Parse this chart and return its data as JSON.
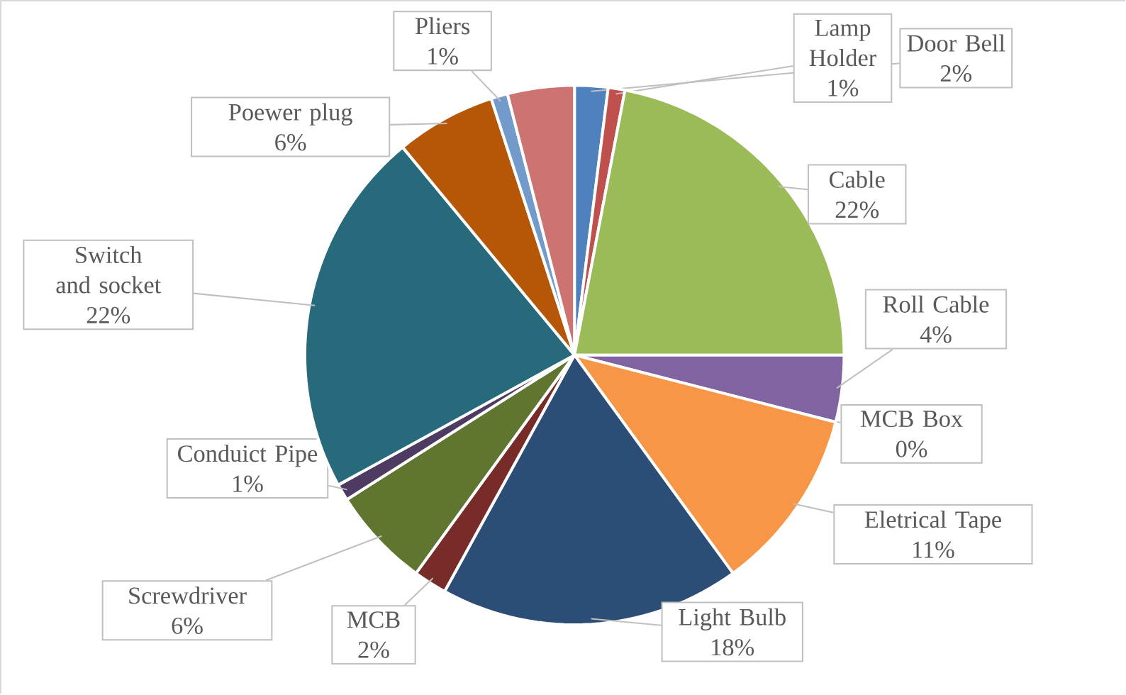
{
  "chart_data": {
    "type": "pie",
    "categories": [
      "Door Bell",
      "Lamp Holder",
      "Cable",
      "Roll Cable",
      "MCB Box",
      "Eletrical Tape",
      "Light Bulb",
      "MCB",
      "Screwdriver",
      "Conduict Pipe",
      "Switch and socket",
      "Poewer plug",
      "Pliers",
      null
    ],
    "values": [
      2,
      1,
      22,
      4,
      0,
      11,
      18,
      2,
      6,
      1,
      22,
      6,
      1,
      4
    ],
    "value_labels": [
      "2%",
      "1%",
      "22%",
      "4%",
      "0%",
      "11%",
      "18%",
      "2%",
      "6%",
      "1%",
      "22%",
      "6%",
      "1%",
      null
    ],
    "colors": [
      "#4f81bd",
      "#c0504d",
      "#9bbb59",
      "#8064a2",
      "#4bacc6",
      "#f79646",
      "#2c4d75",
      "#772c2a",
      "#5f7530",
      "#4d3b62",
      "#276a7c",
      "#b65708",
      "#729aca",
      "#cd7371"
    ]
  }
}
